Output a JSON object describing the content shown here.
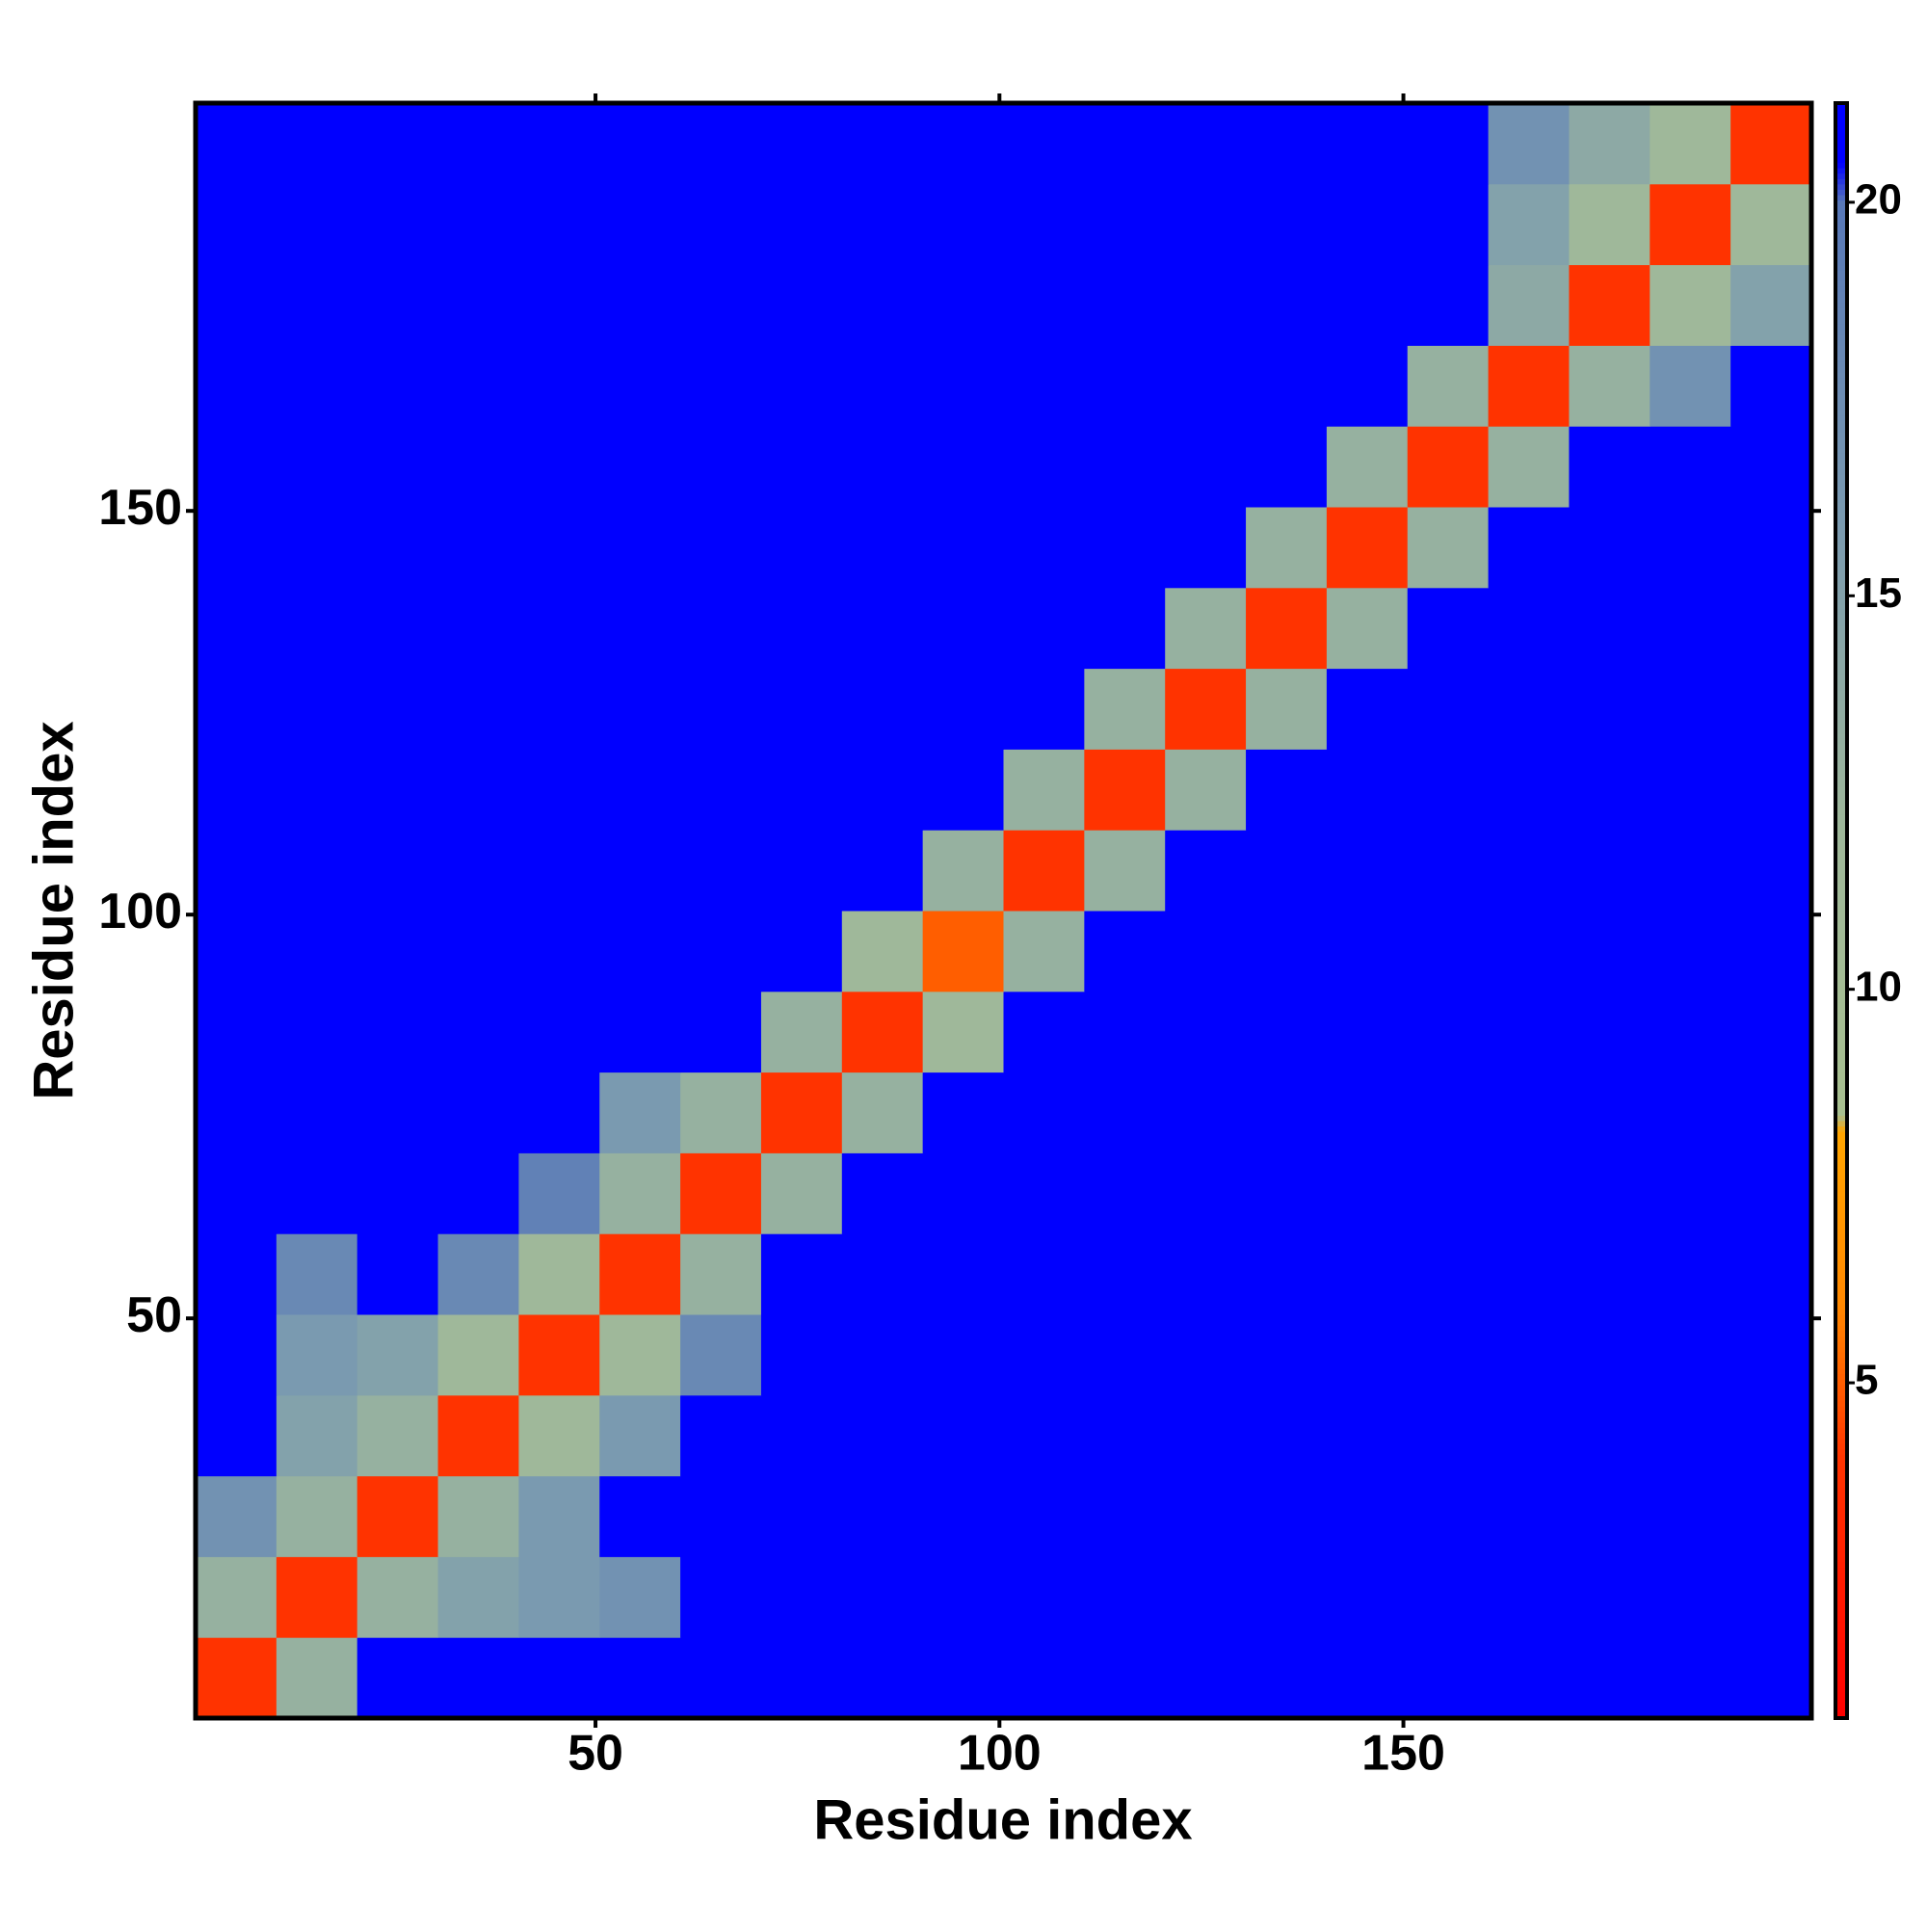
{
  "chart_data": {
    "type": "heatmap",
    "xlabel": "Residue index",
    "ylabel": "Residue index",
    "x": [
      5.5,
      15.5,
      25.5,
      35.5,
      45.5,
      55.5,
      65.5,
      75.5,
      85.5,
      95.5,
      105.5,
      115.5,
      125.5,
      135.5,
      145.5,
      155.5,
      165.5,
      175.5,
      185.5,
      195.5
    ],
    "y": [
      5.5,
      15.5,
      25.5,
      35.5,
      45.5,
      55.5,
      65.5,
      75.5,
      85.5,
      95.5,
      105.5,
      115.5,
      125.5,
      135.5,
      145.5,
      155.5,
      165.5,
      175.5,
      185.5,
      195.5
    ],
    "z": [
      [
        4,
        13,
        21,
        21,
        21,
        21,
        21,
        21,
        21,
        21,
        21,
        21,
        21,
        21,
        21,
        21,
        21,
        21,
        21,
        21
      ],
      [
        13,
        4,
        13,
        15,
        16,
        17,
        21,
        21,
        21,
        21,
        21,
        21,
        21,
        21,
        21,
        21,
        21,
        21,
        21,
        21
      ],
      [
        17,
        13,
        4,
        13,
        16,
        21,
        21,
        21,
        21,
        21,
        21,
        21,
        21,
        21,
        21,
        21,
        21,
        21,
        21,
        21
      ],
      [
        21,
        15,
        13,
        4,
        12,
        16,
        21,
        21,
        21,
        21,
        21,
        21,
        21,
        21,
        21,
        21,
        21,
        21,
        21,
        21
      ],
      [
        21,
        16,
        15,
        12,
        4,
        12,
        18,
        21,
        21,
        21,
        21,
        21,
        21,
        21,
        21,
        21,
        21,
        21,
        21,
        21
      ],
      [
        21,
        18,
        21,
        18,
        12,
        4,
        13,
        21,
        21,
        21,
        21,
        21,
        21,
        21,
        21,
        21,
        21,
        21,
        21,
        21
      ],
      [
        21,
        21,
        21,
        21,
        19,
        13,
        4,
        13,
        21,
        21,
        21,
        21,
        21,
        21,
        21,
        21,
        21,
        21,
        21,
        21
      ],
      [
        21,
        21,
        21,
        21,
        21,
        16,
        13,
        4,
        13,
        21,
        21,
        21,
        21,
        21,
        21,
        21,
        21,
        21,
        21,
        21
      ],
      [
        21,
        21,
        21,
        21,
        21,
        21,
        21,
        13,
        4,
        12,
        21,
        21,
        21,
        21,
        21,
        21,
        21,
        21,
        21,
        21
      ],
      [
        21,
        21,
        21,
        21,
        21,
        21,
        21,
        21,
        12,
        5,
        13,
        21,
        21,
        21,
        21,
        21,
        21,
        21,
        21,
        21
      ],
      [
        21,
        21,
        21,
        21,
        21,
        21,
        21,
        21,
        21,
        13,
        4,
        13,
        21,
        21,
        21,
        21,
        21,
        21,
        21,
        21
      ],
      [
        21,
        21,
        21,
        21,
        21,
        21,
        21,
        21,
        21,
        21,
        13,
        4,
        13,
        21,
        21,
        21,
        21,
        21,
        21,
        21
      ],
      [
        21,
        21,
        21,
        21,
        21,
        21,
        21,
        21,
        21,
        21,
        21,
        13,
        4,
        13,
        21,
        21,
        21,
        21,
        21,
        21
      ],
      [
        21,
        21,
        21,
        21,
        21,
        21,
        21,
        21,
        21,
        21,
        21,
        21,
        13,
        4,
        13,
        21,
        21,
        21,
        21,
        21
      ],
      [
        21,
        21,
        21,
        21,
        21,
        21,
        21,
        21,
        21,
        21,
        21,
        21,
        21,
        13,
        4,
        13,
        21,
        21,
        21,
        21
      ],
      [
        21,
        21,
        21,
        21,
        21,
        21,
        21,
        21,
        21,
        21,
        21,
        21,
        21,
        21,
        13,
        4,
        13,
        21,
        21,
        21
      ],
      [
        21,
        21,
        21,
        21,
        21,
        21,
        21,
        21,
        21,
        21,
        21,
        21,
        21,
        21,
        21,
        13,
        4,
        13,
        17,
        21
      ],
      [
        21,
        21,
        21,
        21,
        21,
        21,
        21,
        21,
        21,
        21,
        21,
        21,
        21,
        21,
        21,
        21,
        14,
        4,
        12,
        15
      ],
      [
        21,
        21,
        21,
        21,
        21,
        21,
        21,
        21,
        21,
        21,
        21,
        21,
        21,
        21,
        21,
        21,
        15,
        12,
        4,
        12
      ],
      [
        21,
        21,
        21,
        21,
        21,
        21,
        21,
        21,
        21,
        21,
        21,
        21,
        21,
        21,
        21,
        21,
        17,
        14,
        12,
        4
      ]
    ],
    "xlim": [
      0.5,
      200.5
    ],
    "ylim": [
      0.5,
      200.5
    ],
    "xticks": [
      50,
      100,
      150
    ],
    "yticks": [
      50,
      100,
      150
    ],
    "zlim": [
      0.74,
      21.26
    ],
    "zticks": [
      5,
      10,
      15,
      20
    ],
    "colorscale": [
      [
        0.74,
        "#ff0000"
      ],
      [
        4,
        "#ff3300"
      ],
      [
        6,
        "#ff8800"
      ],
      [
        8.2,
        "#ffa500"
      ],
      [
        8.4,
        "#a8c090"
      ],
      [
        12,
        "#9fb89a"
      ],
      [
        16,
        "#7a9ab0"
      ],
      [
        20,
        "#5878b8"
      ],
      [
        20.5,
        "#0000ff"
      ],
      [
        21.26,
        "#0000ff"
      ]
    ]
  }
}
